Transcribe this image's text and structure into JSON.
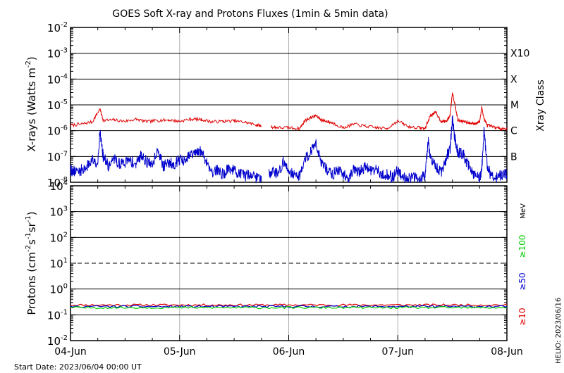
{
  "title": "GOES Soft X-ray and Protons Fluxes   (1min & 5min data)",
  "start_date_label": "Start Date: 2023/06/04 00:00 UT",
  "footer_stamp": "HELIO: 2023/06/16",
  "colors": {
    "xray_long": "#e00000",
    "xray_short": "#0000cc",
    "protons_10": "#e00000",
    "protons_50": "#0000cc",
    "protons_100": "#00cc00",
    "grid_vertical": "#b0b0b0",
    "frame": "#000000"
  },
  "chart_data": [
    {
      "type": "line",
      "panel": "xray",
      "title": "GOES Soft X-ray and Protons Fluxes   (1min & 5min data)",
      "ylabel": "X-rays (Watts m",
      "ylabel_sup": "-2",
      "ylabel_close": ")",
      "yscale": "log",
      "ylim": [
        1e-08,
        0.01
      ],
      "yticks": [
        {
          "base": "10",
          "exp": "-2"
        },
        {
          "base": "10",
          "exp": "-3"
        },
        {
          "base": "10",
          "exp": "-4"
        },
        {
          "base": "10",
          "exp": "-5"
        },
        {
          "base": "10",
          "exp": "-6"
        },
        {
          "base": "10",
          "exp": "-7"
        },
        {
          "base": "10",
          "exp": "-8"
        }
      ],
      "right_axis_label": "Xray Class",
      "class_labels": [
        "X10",
        "X",
        "M",
        "C",
        "B"
      ],
      "x_days": [
        0,
        4
      ],
      "xticks": [
        "04-Jun",
        "05-Jun",
        "06-Jun",
        "07-Jun",
        "08-Jun"
      ],
      "grid": true,
      "series": [
        {
          "name": "",
          "color_key": "xray_long",
          "x": [
            0.0,
            0.1,
            0.2,
            0.27,
            0.3,
            0.4,
            0.5,
            0.6,
            0.7,
            0.8,
            0.9,
            1.0,
            1.1,
            1.2,
            1.3,
            1.4,
            1.5,
            1.6,
            1.7,
            1.75,
            1.78,
            1.84,
            1.9,
            2.0,
            2.1,
            2.15,
            2.2,
            2.25,
            2.3,
            2.35,
            2.4,
            2.5,
            2.6,
            2.7,
            2.8,
            2.9,
            3.0,
            3.1,
            3.2,
            3.25,
            3.3,
            3.35,
            3.4,
            3.45,
            3.48,
            3.5,
            3.53,
            3.55,
            3.6,
            3.65,
            3.7,
            3.75,
            3.77,
            3.79,
            3.82,
            3.85,
            3.9,
            3.95,
            4.0
          ],
          "y": [
            1.6e-06,
            1.8e-06,
            2.2e-06,
            7e-06,
            2.5e-06,
            2.6e-06,
            2.3e-06,
            2.8e-06,
            2.2e-06,
            2.5e-06,
            2.6e-06,
            2.3e-06,
            2.8e-06,
            2.7e-06,
            2.2e-06,
            2.3e-06,
            2.4e-06,
            2.1e-06,
            1.7e-06,
            1.5e-06,
            null,
            1.4e-06,
            1.3e-06,
            1.3e-06,
            1.2e-06,
            2.5e-06,
            3.2e-06,
            3.8e-06,
            2.6e-06,
            2.3e-06,
            2e-06,
            1.3e-06,
            1.8e-06,
            1.5e-06,
            1.3e-06,
            1.2e-06,
            2.4e-06,
            1.4e-06,
            1.3e-06,
            1.2e-06,
            4e-06,
            5e-06,
            2.2e-06,
            2.4e-06,
            4e-06,
            3e-05,
            8e-06,
            2.5e-06,
            2.3e-06,
            2e-06,
            1.9e-06,
            2.2e-06,
            8e-06,
            3e-06,
            1.6e-06,
            1.5e-06,
            1.3e-06,
            1.2e-06,
            1.2e-06
          ]
        },
        {
          "name": "",
          "color_key": "xray_short",
          "x": [
            0.0,
            0.05,
            0.1,
            0.15,
            0.2,
            0.25,
            0.27,
            0.3,
            0.35,
            0.4,
            0.45,
            0.5,
            0.55,
            0.6,
            0.65,
            0.7,
            0.75,
            0.8,
            0.85,
            0.9,
            0.95,
            1.0,
            1.05,
            1.1,
            1.15,
            1.2,
            1.25,
            1.3,
            1.35,
            1.4,
            1.45,
            1.5,
            1.55,
            1.6,
            1.65,
            1.7,
            1.75,
            1.78,
            1.82,
            1.85,
            1.9,
            1.95,
            2.0,
            2.05,
            2.1,
            2.15,
            2.2,
            2.25,
            2.3,
            2.35,
            2.4,
            2.45,
            2.5,
            2.55,
            2.6,
            2.65,
            2.7,
            2.75,
            2.8,
            2.85,
            2.9,
            2.95,
            3.0,
            3.05,
            3.1,
            3.15,
            3.2,
            3.25,
            3.28,
            3.3,
            3.35,
            3.4,
            3.45,
            3.48,
            3.5,
            3.52,
            3.55,
            3.6,
            3.65,
            3.7,
            3.75,
            3.77,
            3.79,
            3.82,
            3.85,
            3.9,
            3.95,
            4.0
          ],
          "y": [
            3e-08,
            2.5e-08,
            3e-08,
            4e-08,
            8e-08,
            6e-08,
            9e-07,
            1e-07,
            4e-08,
            8e-08,
            5e-08,
            6e-08,
            7e-08,
            5e-08,
            1.2e-07,
            6e-08,
            5e-08,
            2e-07,
            4e-08,
            6e-08,
            5e-08,
            8e-08,
            6e-08,
            1.2e-07,
            1.3e-07,
            1.6e-07,
            6e-08,
            2.5e-08,
            3e-08,
            2e-08,
            3.5e-08,
            3e-08,
            2e-08,
            1.8e-08,
            2.2e-08,
            1.5e-08,
            1.6e-08,
            null,
            2e-08,
            3e-08,
            2e-08,
            6e-08,
            3e-08,
            2e-08,
            1.8e-08,
            8e-08,
            1.5e-07,
            3.5e-07,
            6e-08,
            3e-08,
            2e-08,
            3e-08,
            2e-08,
            1.6e-08,
            3e-08,
            2.5e-08,
            4e-08,
            3e-08,
            3e-08,
            2e-08,
            2e-08,
            1.5e-08,
            3e-08,
            1.6e-08,
            1.5e-08,
            1.5e-08,
            1.5e-08,
            2e-08,
            4e-07,
            7e-08,
            4e-08,
            2.5e-08,
            1e-07,
            2e-07,
            3e-06,
            6e-07,
            1.5e-07,
            1.2e-07,
            4e-08,
            2e-08,
            1.5e-08,
            3e-08,
            9e-07,
            5e-08,
            2e-08,
            1.5e-08,
            2e-08,
            2e-08
          ]
        }
      ]
    },
    {
      "type": "line",
      "panel": "protons",
      "ylabel": "Protons (cm",
      "ylabel_parts": [
        {
          "t": "Protons (cm",
          "sup": false
        },
        {
          "t": "-2",
          "sup": true
        },
        {
          "t": "s",
          "sup": false
        },
        {
          "t": "-1",
          "sup": true
        },
        {
          "t": "sr",
          "sup": false
        },
        {
          "t": "-1",
          "sup": true
        },
        {
          "t": ")",
          "sup": false
        }
      ],
      "yscale": "log",
      "ylim": [
        0.01,
        10000
      ],
      "yticks": [
        {
          "base": "10",
          "exp": "4"
        },
        {
          "base": "10",
          "exp": "3"
        },
        {
          "base": "10",
          "exp": "2"
        },
        {
          "base": "10",
          "exp": "1"
        },
        {
          "base": "10",
          "exp": "0"
        },
        {
          "base": "10",
          "exp": "-1"
        },
        {
          "base": "10",
          "exp": "-2"
        }
      ],
      "unit_label": "MeV",
      "energy_labels": [
        {
          "text": "≥100",
          "color_key": "protons_100"
        },
        {
          "text": "≥50",
          "color_key": "protons_50"
        },
        {
          "text": "≥10",
          "color_key": "protons_10"
        }
      ],
      "threshold": 10,
      "x_days": [
        0,
        4
      ],
      "xticks": [
        "04-Jun",
        "05-Jun",
        "06-Jun",
        "07-Jun",
        "08-Jun"
      ],
      "grid": true,
      "series": [
        {
          "name": "≥10",
          "color_key": "protons_10",
          "level": 0.24
        },
        {
          "name": "≥50",
          "color_key": "protons_50",
          "level": 0.21
        },
        {
          "name": "≥100",
          "color_key": "protons_100",
          "level": 0.19
        }
      ]
    }
  ]
}
